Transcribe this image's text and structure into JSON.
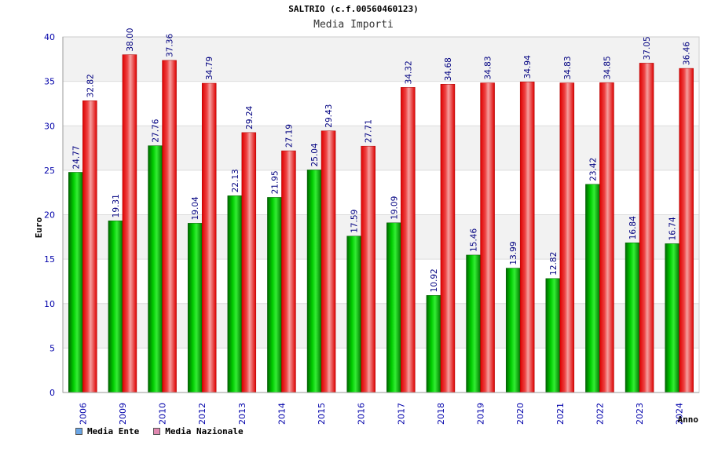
{
  "chart_data": {
    "type": "bar",
    "title": "SALTRIO (c.f.00560460123)",
    "subtitle": "Media Importi",
    "xlabel": "Anno",
    "ylabel": "Euro",
    "ylim": [
      0,
      40
    ],
    "yticks": [
      0,
      5,
      10,
      15,
      20,
      25,
      30,
      35,
      40
    ],
    "categories": [
      "2006",
      "2009",
      "2010",
      "2012",
      "2013",
      "2014",
      "2015",
      "2016",
      "2017",
      "2018",
      "2019",
      "2020",
      "2021",
      "2022",
      "2023",
      "2024"
    ],
    "series": [
      {
        "name": "Media Ente",
        "legend_color": "#6aa6e6",
        "bar_color": "#00aa00",
        "values": [
          24.77,
          19.31,
          27.76,
          19.04,
          22.13,
          21.95,
          25.04,
          17.59,
          19.09,
          10.92,
          15.46,
          13.99,
          12.82,
          23.42,
          16.84,
          16.74
        ],
        "labels": [
          "24.77",
          "19.31",
          "27.76",
          "19.04",
          "22.13",
          "21.95",
          "25.04",
          "17.59",
          "19.09",
          "10.92",
          "15.46",
          "13.99",
          "12.82",
          "23.42",
          "16.84",
          "16.74"
        ]
      },
      {
        "name": "Media Nazionale",
        "legend_color": "#e088b0",
        "bar_color": "#ee1111",
        "values": [
          32.82,
          38.0,
          37.36,
          34.79,
          29.24,
          27.19,
          29.43,
          27.71,
          34.32,
          34.68,
          34.83,
          34.94,
          34.83,
          34.85,
          37.05,
          36.46
        ],
        "labels": [
          "32.82",
          "38.00",
          "37.36",
          "34.79",
          "29.24",
          "27.19",
          "29.43",
          "27.71",
          "34.32",
          "34.68",
          "34.83",
          "34.94",
          "34.83",
          "34.85",
          "37.05",
          "36.46"
        ]
      }
    ],
    "grid": true,
    "legend_position": "bottom-left"
  }
}
